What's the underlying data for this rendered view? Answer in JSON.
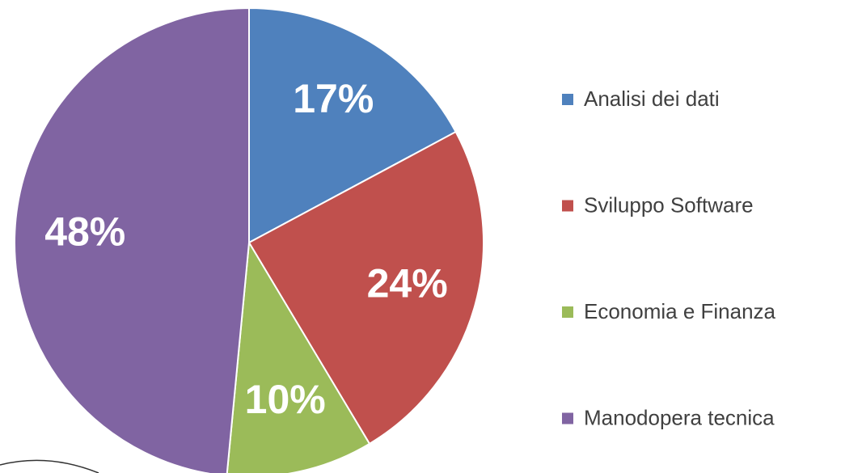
{
  "chart_data": {
    "type": "pie",
    "categories": [
      "Analisi dei dati",
      "Sviluppo Software",
      "Economia e Finanza",
      "Manodopera tecnica"
    ],
    "values": [
      17,
      24,
      10,
      48
    ],
    "value_labels": [
      "17%",
      "24%",
      "10%",
      "48%"
    ],
    "colors": [
      "#4f81bd",
      "#c0504d",
      "#9bbb59",
      "#8064a2"
    ],
    "legend": "right"
  }
}
